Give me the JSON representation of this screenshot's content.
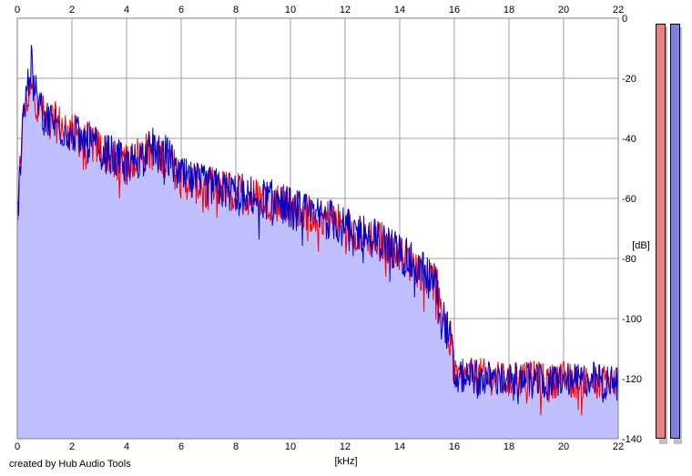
{
  "chart_data": {
    "type": "area",
    "title": "",
    "xlabel": "[kHz]",
    "ylabel": "[dB]",
    "xlim": [
      0,
      22
    ],
    "ylim": [
      -140,
      0
    ],
    "x_ticks": [
      0,
      2,
      4,
      6,
      8,
      10,
      12,
      14,
      16,
      18,
      20,
      22
    ],
    "y_ticks": [
      0,
      -20,
      -40,
      -60,
      -80,
      -100,
      -120,
      -140
    ],
    "grid": true,
    "fill_color": "#c0c0ff",
    "series": [
      {
        "color": "#ff0000",
        "envelope": {
          "x": [
            0.0,
            0.1,
            0.2,
            0.3,
            0.5,
            0.7,
            1.0,
            1.5,
            2.0,
            2.5,
            3.0,
            3.5,
            4.0,
            4.5,
            5.0,
            5.5,
            6.0,
            6.5,
            7.0,
            7.5,
            8.0,
            8.5,
            9.0,
            9.5,
            10.0,
            10.5,
            11.0,
            11.5,
            12.0,
            12.5,
            13.0,
            13.5,
            14.0,
            14.5,
            15.0,
            15.3,
            15.5,
            15.7,
            15.9,
            16.0,
            16.5,
            17.0,
            17.5,
            18.0,
            18.5,
            19.0,
            19.5,
            20.0,
            20.5,
            21.0,
            21.5,
            22.0
          ],
          "y": [
            -68,
            -50,
            -35,
            -28,
            -24,
            -27,
            -33,
            -35,
            -38,
            -41,
            -43,
            -47,
            -49,
            -45,
            -44,
            -47,
            -53,
            -55,
            -56,
            -57,
            -58,
            -59,
            -60,
            -61,
            -63,
            -64,
            -66,
            -67,
            -69,
            -71,
            -73,
            -75,
            -78,
            -82,
            -85,
            -88,
            -94,
            -103,
            -108,
            -120,
            -119,
            -119,
            -120,
            -121,
            -120,
            -120,
            -121,
            -120,
            -121,
            -121,
            -120,
            -121
          ]
        }
      },
      {
        "color": "#0000cc",
        "envelope": {
          "x": [
            0.0,
            0.1,
            0.2,
            0.3,
            0.5,
            0.7,
            1.0,
            1.5,
            2.0,
            2.5,
            3.0,
            3.5,
            4.0,
            4.5,
            5.0,
            5.5,
            6.0,
            6.5,
            7.0,
            7.5,
            8.0,
            8.5,
            9.0,
            9.5,
            10.0,
            10.5,
            11.0,
            11.5,
            12.0,
            12.5,
            13.0,
            13.5,
            14.0,
            14.5,
            15.0,
            15.3,
            15.5,
            15.7,
            15.9,
            16.0,
            16.5,
            17.0,
            17.5,
            18.0,
            18.5,
            19.0,
            19.5,
            20.0,
            20.5,
            21.0,
            21.5,
            22.0
          ],
          "y": [
            -70,
            -49,
            -34,
            -27,
            -15,
            -26,
            -33,
            -36,
            -38,
            -41,
            -44,
            -46,
            -49,
            -46,
            -43,
            -46,
            -53,
            -55,
            -56,
            -57,
            -58,
            -59,
            -60,
            -61,
            -63,
            -65,
            -66,
            -67,
            -70,
            -71,
            -73,
            -75,
            -78,
            -82,
            -85,
            -88,
            -95,
            -103,
            -109,
            -120,
            -119,
            -120,
            -120,
            -121,
            -120,
            -121,
            -121,
            -120,
            -121,
            -120,
            -121,
            -122
          ]
        }
      }
    ],
    "meters": [
      {
        "color": "#f08080"
      },
      {
        "color": "#8080e0"
      }
    ]
  },
  "credit": "created by Hub Audio Tools"
}
